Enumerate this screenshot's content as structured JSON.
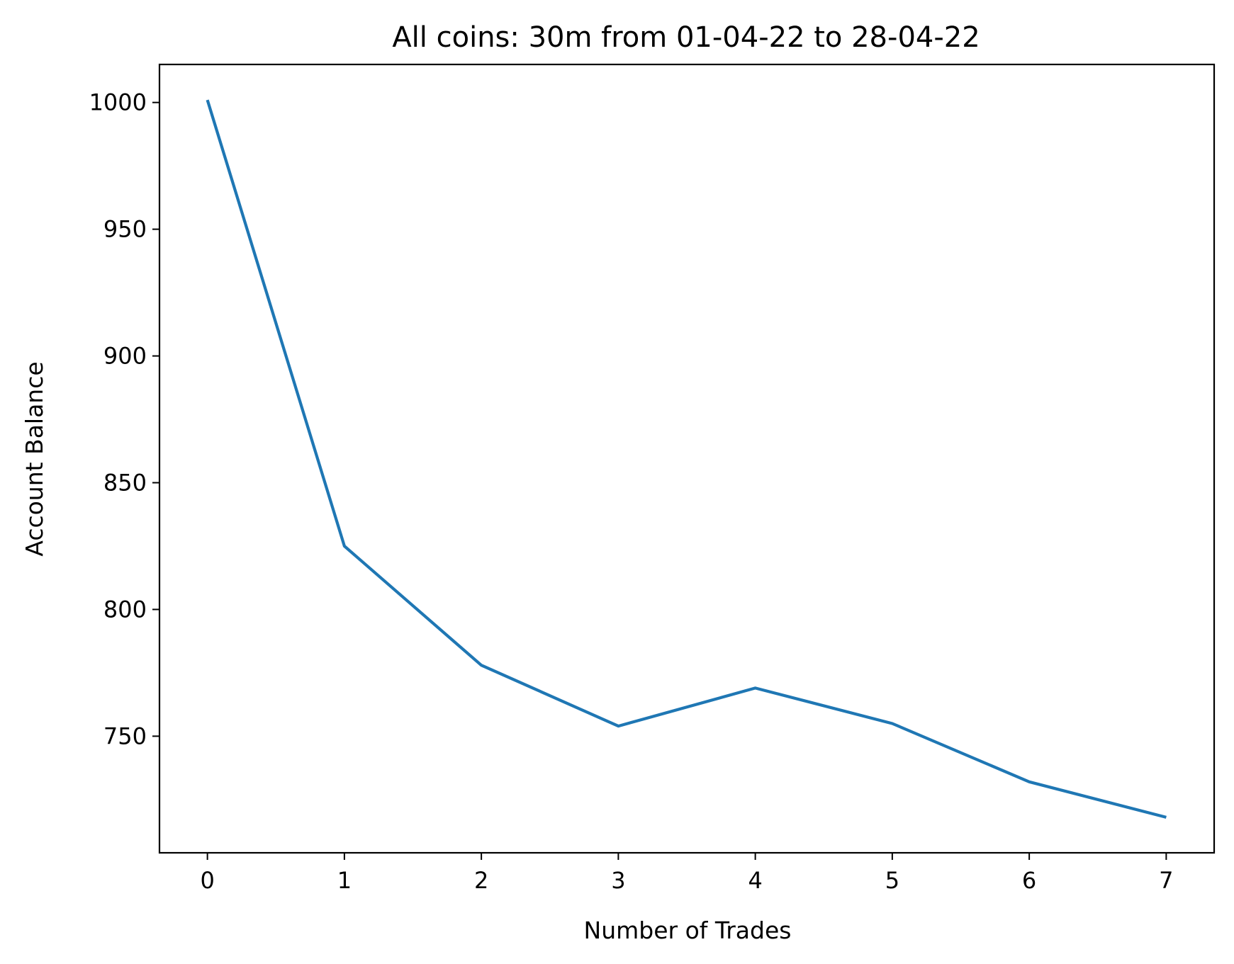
{
  "chart_data": {
    "type": "line",
    "title": "All coins: 30m from 01-04-22 to 28-04-22",
    "xlabel": "Number of Trades",
    "ylabel": "Account Balance",
    "x": [
      0,
      1,
      2,
      3,
      4,
      5,
      6,
      7
    ],
    "series": [
      {
        "values": [
          1001,
          825,
          778,
          754,
          769,
          755,
          732,
          718
        ],
        "color": "#1f77b4"
      }
    ],
    "xlim": [
      -0.35,
      7.35
    ],
    "ylim": [
      704,
      1015
    ],
    "xticks": [
      0,
      1,
      2,
      3,
      4,
      5,
      6,
      7
    ],
    "yticks": [
      750,
      800,
      850,
      900,
      950,
      1000
    ],
    "grid": false,
    "legend": "none"
  }
}
